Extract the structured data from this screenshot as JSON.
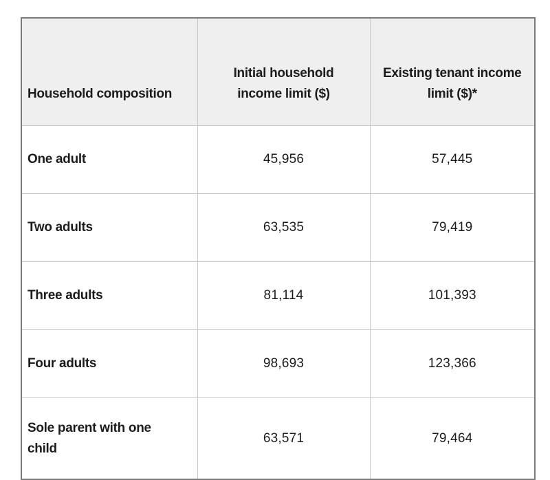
{
  "table": {
    "columns": {
      "composition": "Household composition",
      "initial": "Initial household income limit ($)",
      "existing": "Existing tenant income limit ($)*"
    },
    "rows": [
      {
        "label": "One adult",
        "initial": "45,956",
        "existing": "57,445"
      },
      {
        "label": "Two adults",
        "initial": "63,535",
        "existing": "79,419"
      },
      {
        "label": "Three adults",
        "initial": "81,114",
        "existing": "101,393"
      },
      {
        "label": "Four adults",
        "initial": "98,693",
        "existing": "123,366"
      },
      {
        "label": "Sole parent with one child",
        "initial": "63,571",
        "existing": "79,464"
      }
    ]
  }
}
